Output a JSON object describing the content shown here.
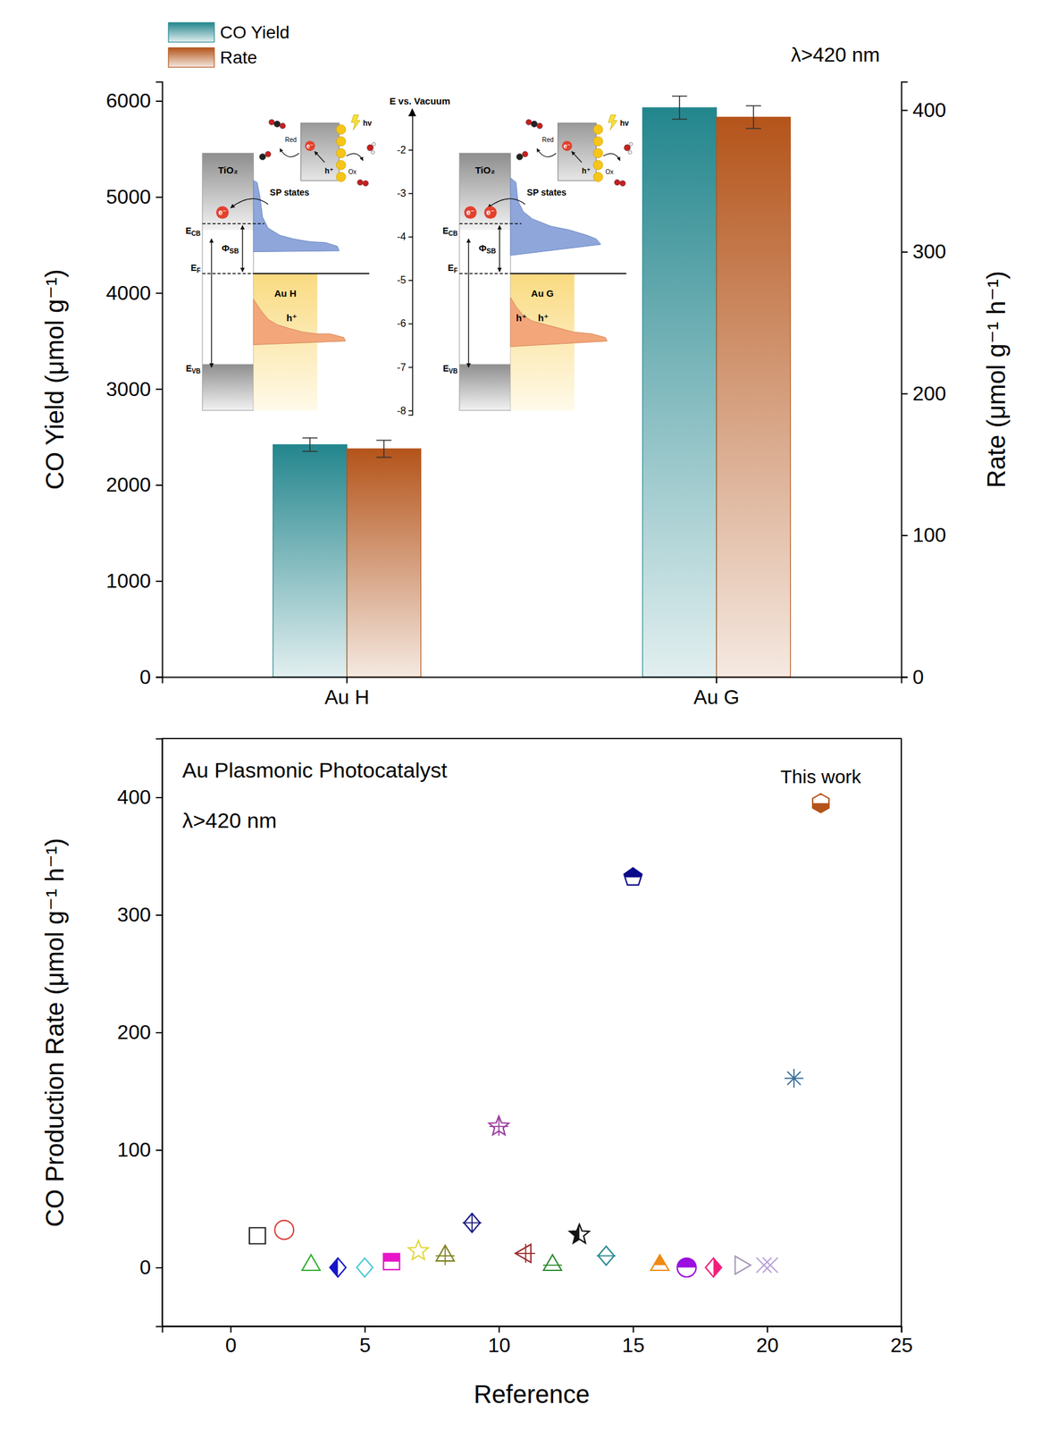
{
  "chart_data": [
    {
      "type": "bar",
      "categories": [
        "Au H",
        "Au G"
      ],
      "y_label": "CO Yield (μmol g⁻¹)",
      "y2_label": "Rate (μmol g⁻¹ h⁻¹)",
      "ylim": [
        0,
        6200
      ],
      "yticks": [
        0,
        1000,
        2000,
        3000,
        4000,
        5000,
        6000
      ],
      "y2lim": [
        0,
        420
      ],
      "y2ticks": [
        0,
        100,
        200,
        300,
        400
      ],
      "legend": "top-left",
      "annotations": [
        "λ>420 nm"
      ],
      "series": [
        {
          "name": "CO Yield",
          "color": "#23868d",
          "values": [
            2420,
            5930
          ],
          "errors": [
            70,
            120
          ]
        },
        {
          "name": "Rate",
          "color": "#b4541a",
          "axis": "y2",
          "values": [
            161,
            395
          ],
          "errors": [
            6,
            8
          ]
        }
      ],
      "energy_axis": {
        "label": "E vs. Vacuum",
        "ylim": [
          -1.2,
          -8.1
        ],
        "yticks": [
          -2,
          -3,
          -4,
          -5,
          -6,
          -7,
          -8
        ]
      },
      "insets": [
        {
          "semiconductor": "TiO₂",
          "metal": "Au H",
          "states": "SP states",
          "barrier": "ΦSB",
          "levels": [
            {
              "label": "ECB",
              "value": -3.7
            },
            {
              "label": "EF",
              "value": -4.85
            },
            {
              "label": "EVB",
              "value": -7.05
            }
          ],
          "electrons": [
            "e⁻"
          ],
          "holes": [
            "h⁺"
          ],
          "scheme": {
            "reduction": "Red",
            "oxidation": "Ox",
            "light": "hv",
            "electron": "e⁻",
            "hole": "h⁺"
          }
        },
        {
          "semiconductor": "TiO₂",
          "metal": "Au G",
          "states": "SP states",
          "barrier": "ΦSB",
          "levels": [
            {
              "label": "ECB",
              "value": -3.7
            },
            {
              "label": "EF",
              "value": -4.85
            },
            {
              "label": "EVB",
              "value": -7.05
            }
          ],
          "electrons": [
            "e⁻",
            "e⁻"
          ],
          "holes": [
            "h⁺",
            "h⁺"
          ],
          "scheme": {
            "reduction": "Red",
            "oxidation": "Ox",
            "light": "hv",
            "electron": "e⁻",
            "hole": "h⁺"
          }
        }
      ]
    },
    {
      "type": "scatter",
      "title": "Au Plasmonic Photocatalyst",
      "annotations": [
        "λ>420 nm"
      ],
      "x_label": "Reference",
      "y_label": "CO Production Rate (μmol g⁻¹ h⁻¹)",
      "xlim": [
        -2.55,
        25
      ],
      "xticks": [
        0,
        5,
        10,
        15,
        20,
        25
      ],
      "ylim": [
        -50,
        450
      ],
      "yticks": [
        0,
        100,
        200,
        300,
        400
      ],
      "series": [
        {
          "x": [
            1
          ],
          "values": [
            27
          ],
          "color": "#222222",
          "marker": "square"
        },
        {
          "x": [
            2
          ],
          "values": [
            32
          ],
          "color": "#d9413a",
          "marker": "circle"
        },
        {
          "x": [
            3
          ],
          "values": [
            2
          ],
          "color": "#2fae2f",
          "marker": "triangle"
        },
        {
          "x": [
            4
          ],
          "values": [
            0
          ],
          "color": "#1515c8",
          "marker": "diamond-half-left"
        },
        {
          "x": [
            5
          ],
          "values": [
            0
          ],
          "color": "#4ccad6",
          "marker": "diamond"
        },
        {
          "x": [
            6
          ],
          "values": [
            5
          ],
          "color": "#e815c9",
          "marker": "square-half-top"
        },
        {
          "x": [
            7
          ],
          "values": [
            14
          ],
          "color": "#e0d83a",
          "marker": "star"
        },
        {
          "x": [
            8
          ],
          "values": [
            10
          ],
          "color": "#808020",
          "marker": "triangle-cross"
        },
        {
          "x": [
            9
          ],
          "values": [
            38
          ],
          "color": "#1a1a80",
          "marker": "diamond-cross"
        },
        {
          "x": [
            10
          ],
          "values": [
            120
          ],
          "color": "#9b3ea0",
          "marker": "star-plus"
        },
        {
          "x": [
            11
          ],
          "values": [
            12
          ],
          "color": "#9a2a2a",
          "marker": "triangle-left-cross"
        },
        {
          "x": [
            12
          ],
          "values": [
            2
          ],
          "color": "#2e8b2e",
          "marker": "triangle-line"
        },
        {
          "x": [
            13
          ],
          "values": [
            28
          ],
          "color": "#111111",
          "marker": "star-half-left"
        },
        {
          "x": [
            14
          ],
          "values": [
            10
          ],
          "color": "#2a8a8f",
          "marker": "diamond-line"
        },
        {
          "x": [
            15
          ],
          "values": [
            332
          ],
          "color": "#0a0a8a",
          "marker": "pentagon-half-top"
        },
        {
          "x": [
            16
          ],
          "values": [
            2
          ],
          "color": "#f08a10",
          "marker": "triangle-half-top"
        },
        {
          "x": [
            17
          ],
          "values": [
            0
          ],
          "color": "#9a10e0",
          "marker": "circle-half-top"
        },
        {
          "x": [
            18
          ],
          "values": [
            0
          ],
          "color": "#f0207a",
          "marker": "diamond-half-right"
        },
        {
          "x": [
            19
          ],
          "values": [
            2
          ],
          "color": "#a898b8",
          "marker": "triangle-right"
        },
        {
          "x": [
            20
          ],
          "values": [
            2
          ],
          "color": "#b8a0d8",
          "marker": "x"
        },
        {
          "x": [
            21
          ],
          "values": [
            161
          ],
          "color": "#3a6f9a",
          "marker": "asterisk"
        },
        {
          "x": [
            22
          ],
          "values": [
            395
          ],
          "color": "#b4541a",
          "marker": "hexagon-half-bottom",
          "annotation": "This work"
        }
      ]
    }
  ]
}
